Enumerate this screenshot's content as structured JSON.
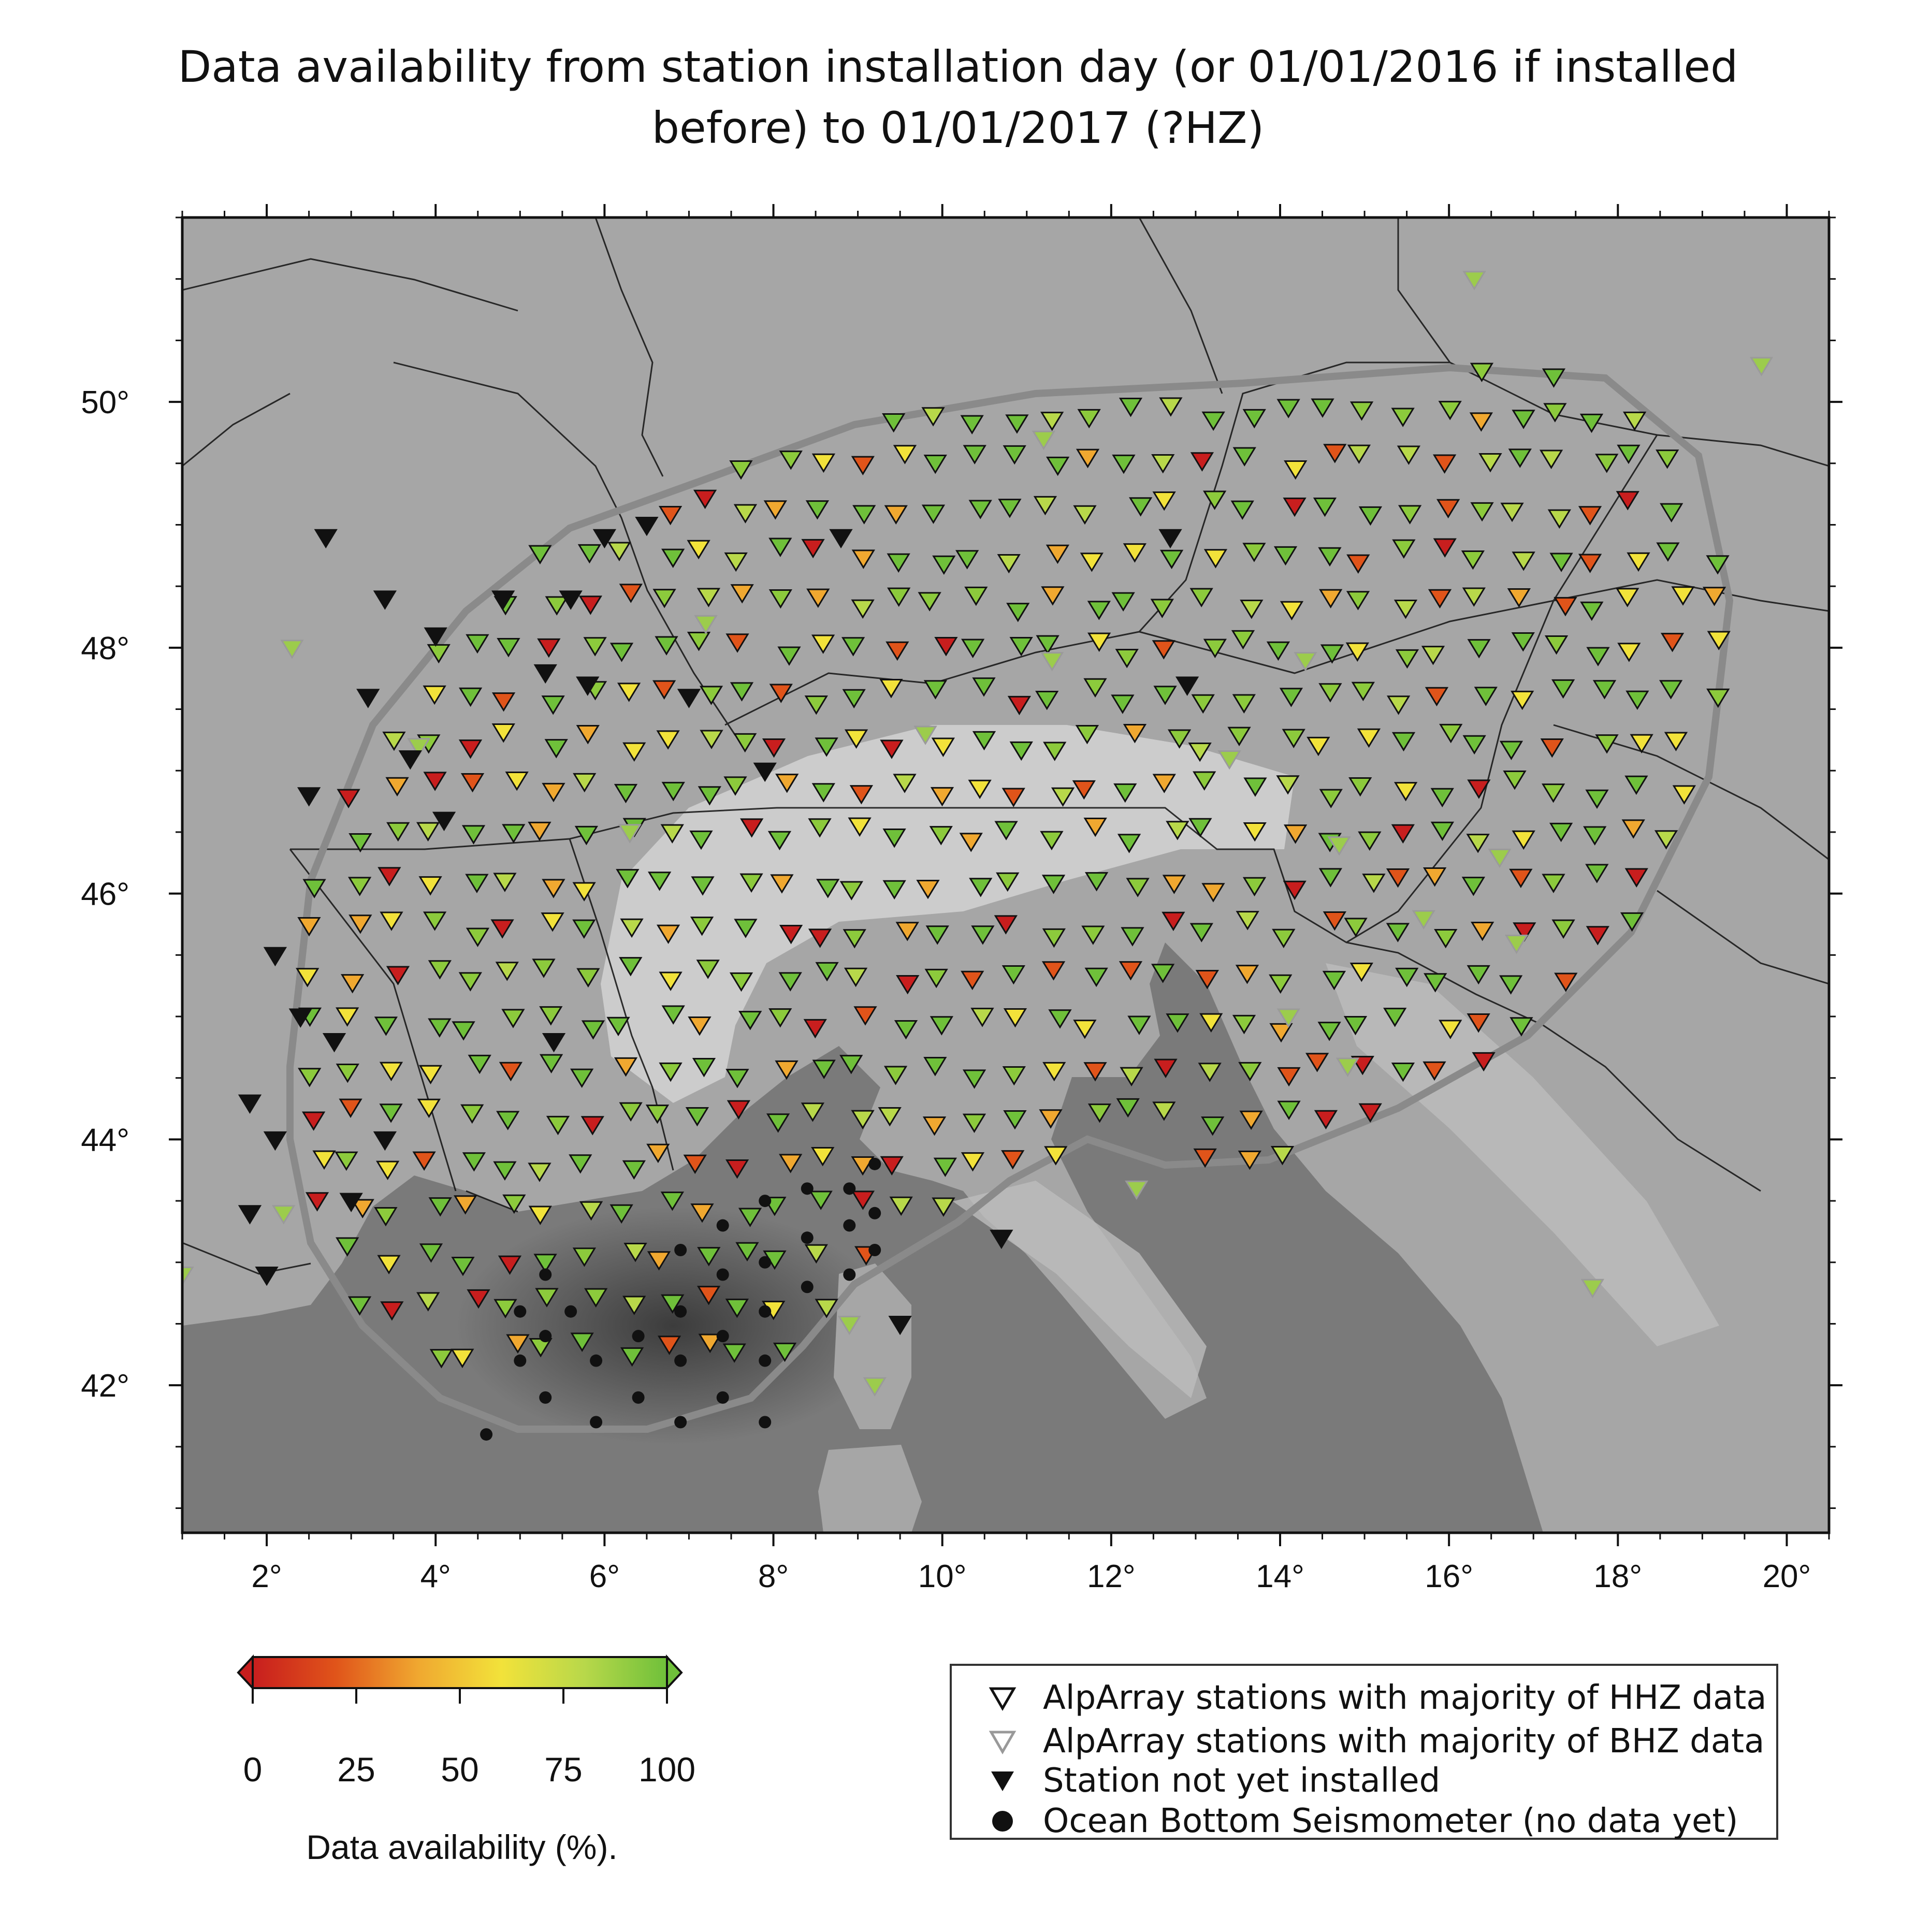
{
  "title": {
    "line1": "Data availability from station installation day (or 01/01/2016 if installed",
    "line2": "before)  to 01/01/2017  (?HZ)"
  },
  "map": {
    "lon_ticks": [
      "2°",
      "4°",
      "6°",
      "8°",
      "10°",
      "12°",
      "14°",
      "16°",
      "18°",
      "20°"
    ],
    "lat_ticks": [
      "42°",
      "44°",
      "46°",
      "48°",
      "50°"
    ],
    "lon_range": [
      1.0,
      20.5
    ],
    "lat_range": [
      40.8,
      51.5
    ],
    "colors": {
      "sea": "#7a7a7a",
      "land": "#a6a6a6",
      "alps": "#d4d4d4",
      "deep_basin": "#4f4f4f",
      "outline": "#8a8a8a",
      "borders": "#111111"
    }
  },
  "colorbar": {
    "title": "Data availability (%).",
    "ticks": [
      "0",
      "25",
      "50",
      "75",
      "100"
    ],
    "gradient": [
      "#c81e1e",
      "#e0541a",
      "#f0a830",
      "#f2e23a",
      "#b8d84a",
      "#6fc03a"
    ]
  },
  "legend": {
    "items": [
      {
        "label": "AlpArray stations with majority of HHZ data",
        "symbol": "triangle-outline-black"
      },
      {
        "label": "AlpArray stations with majority of BHZ data",
        "symbol": "triangle-outline-grey"
      },
      {
        "label": "Station not yet installed",
        "symbol": "triangle-filled-black"
      },
      {
        "label": "Ocean Bottom Seismometer (no data yet)",
        "symbol": "circle-filled-black"
      }
    ]
  },
  "stations": {
    "black": [
      [
        2.7,
        48.9
      ],
      [
        3.4,
        48.4
      ],
      [
        4.0,
        48.1
      ],
      [
        4.8,
        48.4
      ],
      [
        5.6,
        48.4
      ],
      [
        6.0,
        48.9
      ],
      [
        6.5,
        49.0
      ],
      [
        3.2,
        47.6
      ],
      [
        3.7,
        47.1
      ],
      [
        2.5,
        46.8
      ],
      [
        4.1,
        46.6
      ],
      [
        2.1,
        45.5
      ],
      [
        2.4,
        45.0
      ],
      [
        2.8,
        44.8
      ],
      [
        1.8,
        44.3
      ],
      [
        2.1,
        44.0
      ],
      [
        3.4,
        44.0
      ],
      [
        3.0,
        43.5
      ],
      [
        1.8,
        43.4
      ],
      [
        2.0,
        42.9
      ],
      [
        5.3,
        47.8
      ],
      [
        5.8,
        47.7
      ],
      [
        7.0,
        47.6
      ],
      [
        7.9,
        47.0
      ],
      [
        8.8,
        48.9
      ],
      [
        12.7,
        48.9
      ],
      [
        12.9,
        47.7
      ],
      [
        5.4,
        44.8
      ],
      [
        10.7,
        43.2
      ],
      [
        9.5,
        42.5
      ]
    ],
    "greys": [
      [
        2.3,
        48.0
      ],
      [
        3.8,
        47.2
      ],
      [
        6.3,
        46.5
      ],
      [
        7.2,
        48.2
      ],
      [
        9.8,
        47.3
      ],
      [
        11.2,
        49.7
      ],
      [
        11.3,
        47.9
      ],
      [
        13.4,
        47.1
      ],
      [
        14.3,
        47.9
      ],
      [
        14.7,
        46.4
      ],
      [
        15.7,
        45.8
      ],
      [
        16.3,
        51.0
      ],
      [
        16.6,
        46.3
      ],
      [
        16.8,
        45.6
      ],
      [
        19.7,
        50.3
      ],
      [
        12.3,
        43.6
      ],
      [
        2.2,
        43.4
      ],
      [
        1.0,
        42.9
      ],
      [
        8.9,
        42.5
      ],
      [
        9.2,
        42.0
      ],
      [
        17.7,
        42.8
      ],
      [
        14.1,
        45.0
      ],
      [
        14.8,
        44.6
      ]
    ],
    "bbox_note": ""
  },
  "obs": [
    [
      5.0,
      42.6
    ],
    [
      5.3,
      42.9
    ],
    [
      5.6,
      42.6
    ],
    [
      5.3,
      42.4
    ],
    [
      5.0,
      42.2
    ],
    [
      5.3,
      41.9
    ],
    [
      5.9,
      41.7
    ],
    [
      5.9,
      42.2
    ],
    [
      6.4,
      42.4
    ],
    [
      6.4,
      41.9
    ],
    [
      6.9,
      41.7
    ],
    [
      6.9,
      42.2
    ],
    [
      6.9,
      42.6
    ],
    [
      6.9,
      43.1
    ],
    [
      7.4,
      42.9
    ],
    [
      7.4,
      42.4
    ],
    [
      7.4,
      41.9
    ],
    [
      7.9,
      41.7
    ],
    [
      7.9,
      42.2
    ],
    [
      7.9,
      42.6
    ],
    [
      7.9,
      43.0
    ],
    [
      7.4,
      43.3
    ],
    [
      7.9,
      43.5
    ],
    [
      8.4,
      43.6
    ],
    [
      8.4,
      43.2
    ],
    [
      8.4,
      42.8
    ],
    [
      8.9,
      42.9
    ],
    [
      8.9,
      43.3
    ],
    [
      8.9,
      43.6
    ],
    [
      9.2,
      43.8
    ],
    [
      9.2,
      43.4
    ],
    [
      9.2,
      43.1
    ],
    [
      4.6,
      41.6
    ]
  ]
}
